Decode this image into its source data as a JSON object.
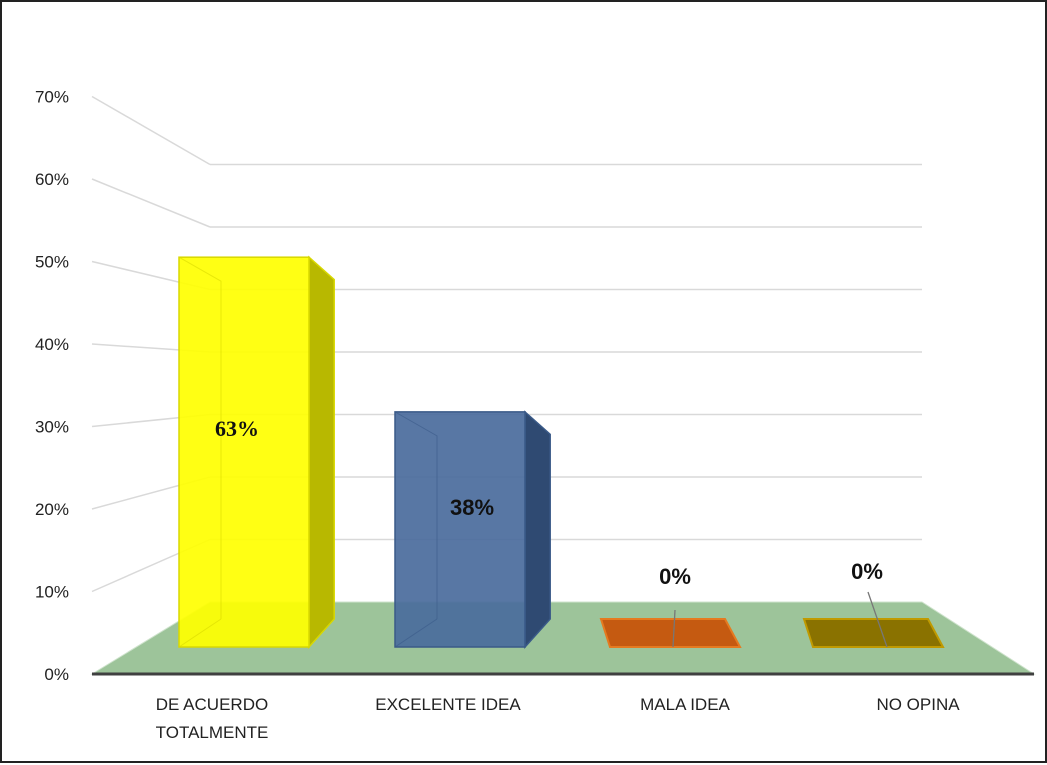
{
  "chart_data": {
    "type": "bar",
    "categories": [
      "DE ACUERDO TOTALMENTE",
      "EXCELENTE IDEA",
      "MALA IDEA",
      "NO OPINA"
    ],
    "category_lines": [
      [
        "DE ACUERDO",
        "TOTALMENTE"
      ],
      [
        "EXCELENTE IDEA"
      ],
      [
        "MALA IDEA"
      ],
      [
        "NO OPINA"
      ]
    ],
    "values": [
      63,
      38,
      0,
      0
    ],
    "data_labels": [
      "63%",
      "38%",
      "0%",
      "0%"
    ],
    "y_ticks": [
      "0%",
      "10%",
      "20%",
      "30%",
      "40%",
      "50%",
      "60%",
      "70%"
    ],
    "ylim": [
      0,
      70
    ],
    "grid": true,
    "legend": "none",
    "three_d": true,
    "colors": {
      "bars": [
        "#ffff00",
        "#4a6b9c",
        "#c55a11",
        "#8a7200"
      ],
      "bar_sides": [
        "#b8b800",
        "#2f4a72",
        "#9a4510",
        "#6a5600"
      ],
      "bar_edges": [
        "#d8d800",
        "#3a5a88",
        "#e57a20",
        "#c09a00"
      ],
      "floor": "#9dc49a",
      "grid": "#d9d9d9",
      "axis": "#404040"
    }
  }
}
